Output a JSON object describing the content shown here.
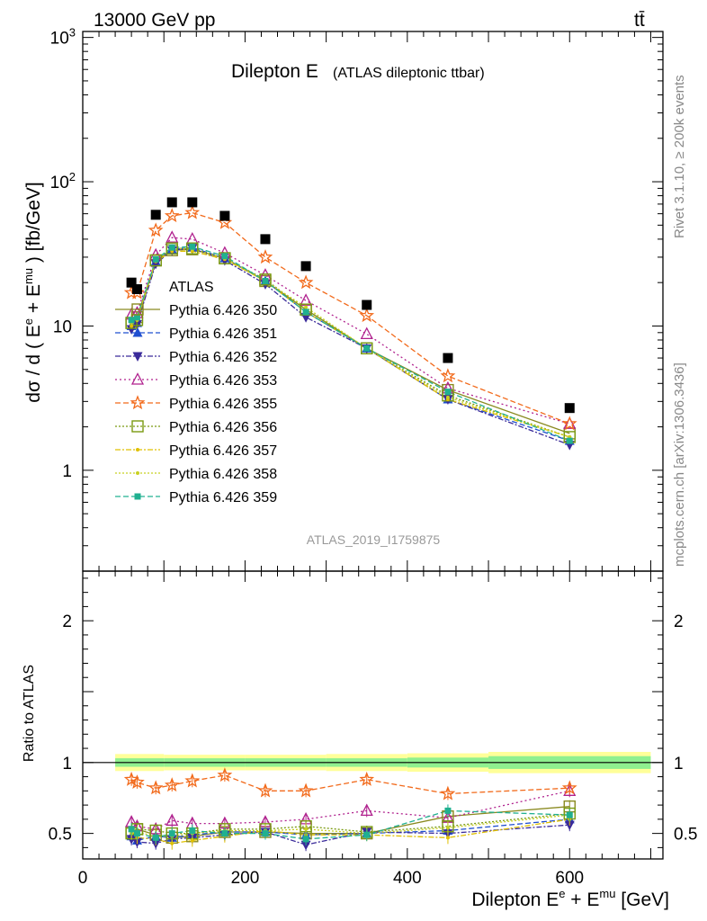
{
  "header": {
    "energy_label": "13000 GeV pp",
    "process_label": "tt̄"
  },
  "side_labels": {
    "rivet": "Rivet 3.1.10, ≥ 200k events",
    "source": "mcplots.cern.ch [arXiv:1306.3436]"
  },
  "colors": {
    "data": "#000000",
    "p350": "#8a8a20",
    "p351": "#1f4fd0",
    "p352": "#3a2a9a",
    "p353": "#b0218e",
    "p355": "#f26a1b",
    "p356": "#7a9a10",
    "p357": "#e0c000",
    "p358": "#c8d020",
    "p359": "#20b090",
    "band_inner": "#8ff08f",
    "band_outer": "#ffff99"
  },
  "chart_data": {
    "type": "scatter",
    "title": "Dilepton E",
    "subtitle": "(ATLAS dileptonic ttbar)",
    "analysis_id": "ATLAS_2019_I1759875",
    "xlabel": "Dilepton E^e + E^mu [GeV]",
    "xlabel_parts": {
      "a": "Dilepton E",
      "b": "e",
      "c": " + E",
      "d": "mu",
      "e": " [GeV]"
    },
    "ylabel": "dσ / d ( E^e + E^mu ) [fb/GeV]",
    "ylabel_parts": {
      "a": "dσ / d ( E",
      "b": "e",
      "c": " + E",
      "d": "mu",
      "e": " ) [fb/GeV]"
    },
    "ratio_ylabel": "Ratio to ATLAS",
    "xlim": [
      0,
      715
    ],
    "ylim": [
      0.2,
      1100
    ],
    "yscale": "log",
    "ratio_ylim": [
      0.32,
      2.35
    ],
    "x_ticks": [
      "0",
      "200",
      "400",
      "600"
    ],
    "x_tick_values": [
      0,
      200,
      400,
      600
    ],
    "y_ticks": [
      {
        "value": 1,
        "base": "1",
        "exp": ""
      },
      {
        "value": 10,
        "base": "10",
        "exp": ""
      },
      {
        "value": 100,
        "base": "10",
        "exp": "2"
      },
      {
        "value": 1000,
        "base": "10",
        "exp": "3"
      }
    ],
    "ratio_ticks": [
      {
        "value": 0.5,
        "label": "0.5"
      },
      {
        "value": 1,
        "label": "1"
      },
      {
        "value": 2,
        "label": "2"
      }
    ],
    "x": [
      60,
      67,
      90,
      110,
      135,
      175,
      225,
      275,
      350,
      450,
      600
    ],
    "data_values": [
      20,
      18,
      59,
      72,
      72,
      58,
      40,
      26,
      14,
      6,
      2.7
    ],
    "band_edges": [
      40,
      100,
      200,
      300,
      400,
      500,
      700
    ],
    "band_inner": [
      0.03,
      0.03,
      0.03,
      0.03,
      0.035,
      0.045
    ],
    "band_outer": [
      0.06,
      0.055,
      0.055,
      0.06,
      0.065,
      0.075
    ],
    "legend": {
      "data_label": "ATLAS"
    },
    "series": [
      {
        "name": "Pythia 6.426 350",
        "key": "p350",
        "marker": "square-open",
        "dash": "",
        "values": [
          10.5,
          11.5,
          28.5,
          33.5,
          34,
          29.5,
          20.5,
          13,
          7,
          3.6,
          1.8
        ],
        "ratio": [
          0.51,
          0.53,
          0.49,
          0.47,
          0.48,
          0.51,
          0.51,
          0.5,
          0.5,
          0.62,
          0.69
        ]
      },
      {
        "name": "Pythia 6.426 351",
        "key": "p351",
        "marker": "triangle-up",
        "dash": "6,3",
        "values": [
          10,
          10.5,
          28,
          34,
          35,
          29.5,
          20.5,
          12.5,
          7,
          3.1,
          1.6
        ],
        "ratio": [
          0.48,
          0.45,
          0.48,
          0.47,
          0.49,
          0.51,
          0.51,
          0.49,
          0.5,
          0.52,
          0.6
        ]
      },
      {
        "name": "Pythia 6.426 352",
        "key": "p352",
        "marker": "triangle-down",
        "dash": "6,2,2,2",
        "values": [
          9.5,
          10.3,
          27,
          33.5,
          34.5,
          28.5,
          19.5,
          11.5,
          7,
          3.1,
          1.5
        ],
        "ratio": [
          0.46,
          0.44,
          0.43,
          0.46,
          0.47,
          0.49,
          0.51,
          0.42,
          0.51,
          0.5,
          0.56
        ]
      },
      {
        "name": "Pythia 6.426 353",
        "key": "p353",
        "marker": "triangle-up-open",
        "dash": "2,3",
        "values": [
          12,
          12.3,
          31,
          41,
          40,
          32,
          22.5,
          15,
          8.8,
          3.7,
          2.1
        ],
        "ratio": [
          0.58,
          0.55,
          0.53,
          0.59,
          0.57,
          0.57,
          0.58,
          0.6,
          0.66,
          0.61,
          0.8
        ]
      },
      {
        "name": "Pythia 6.426 355",
        "key": "p355",
        "marker": "star-open",
        "dash": "6,3",
        "values": [
          17,
          17,
          46,
          58,
          61,
          52,
          30,
          20,
          11.8,
          4.5,
          2.1
        ],
        "ratio": [
          0.88,
          0.86,
          0.82,
          0.84,
          0.87,
          0.91,
          0.8,
          0.8,
          0.88,
          0.78,
          0.82
        ]
      },
      {
        "name": "Pythia 6.426 356",
        "key": "p356",
        "marker": "square-open",
        "dash": "2,2",
        "values": [
          10.5,
          11,
          28.5,
          34.5,
          34.5,
          29.5,
          21,
          13,
          7,
          3.3,
          1.7
        ],
        "ratio": [
          0.5,
          0.53,
          0.52,
          0.5,
          0.5,
          0.53,
          0.53,
          0.55,
          0.51,
          0.55,
          0.64
        ]
      },
      {
        "name": "Pythia 6.426 357",
        "key": "p357",
        "marker": "dot",
        "dash": "6,2,2,2",
        "values": [
          10,
          11,
          28,
          33,
          33,
          29,
          20.5,
          12.5,
          7,
          3.1,
          1.7
        ],
        "ratio": [
          0.52,
          0.47,
          0.46,
          0.43,
          0.45,
          0.48,
          0.52,
          0.49,
          0.49,
          0.47,
          0.6
        ]
      },
      {
        "name": "Pythia 6.426 358",
        "key": "p358",
        "marker": "dot",
        "dash": "2,2",
        "values": [
          10.5,
          11,
          29,
          34.5,
          34,
          29.5,
          20.5,
          13.5,
          7,
          3.2,
          1.7
        ],
        "ratio": [
          0.5,
          0.51,
          0.48,
          0.48,
          0.5,
          0.52,
          0.52,
          0.53,
          0.5,
          0.54,
          0.63
        ]
      },
      {
        "name": "Pythia 6.426 359",
        "key": "p359",
        "marker": "square",
        "dash": "6,3",
        "values": [
          11,
          11.5,
          29,
          35,
          35.5,
          30.5,
          20.5,
          12.5,
          7,
          3.5,
          1.6
        ],
        "ratio": [
          0.53,
          0.5,
          0.47,
          0.5,
          0.52,
          0.5,
          0.5,
          0.46,
          0.49,
          0.66,
          0.63
        ]
      }
    ]
  }
}
